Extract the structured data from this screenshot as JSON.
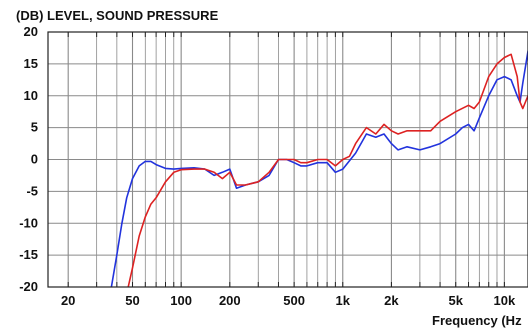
{
  "chart_data": {
    "type": "line",
    "title": "",
    "ylabel": "(DB)  LEVEL, SOUND PRESSURE",
    "xlabel": "Frequency  (Hz",
    "x_scale": "log",
    "xlim": [
      15,
      14000
    ],
    "ylim": [
      -20,
      20
    ],
    "grid": true,
    "legend": "none",
    "y_ticks": [
      "20",
      "15",
      "10",
      "5",
      "0",
      "-5",
      "-10",
      "-15",
      "-20"
    ],
    "y_tick_values": [
      20,
      15,
      10,
      5,
      0,
      -5,
      -10,
      -15,
      -20
    ],
    "x_ticks": [
      "20",
      "50",
      "100",
      "200",
      "500",
      "1k",
      "2k",
      "5k",
      "10k"
    ],
    "x_tick_values": [
      20,
      50,
      100,
      200,
      500,
      1000,
      2000,
      5000,
      10000
    ],
    "series": [
      {
        "color": "#2233dd",
        "points": [
          [
            37,
            -20
          ],
          [
            40,
            -15
          ],
          [
            43,
            -10
          ],
          [
            46,
            -6
          ],
          [
            50,
            -3
          ],
          [
            55,
            -1
          ],
          [
            60,
            -0.3
          ],
          [
            65,
            -0.3
          ],
          [
            70,
            -0.8
          ],
          [
            80,
            -1.4
          ],
          [
            90,
            -1.5
          ],
          [
            100,
            -1.4
          ],
          [
            120,
            -1.3
          ],
          [
            140,
            -1.5
          ],
          [
            160,
            -2.5
          ],
          [
            180,
            -2
          ],
          [
            200,
            -1.5
          ],
          [
            220,
            -4.5
          ],
          [
            250,
            -4
          ],
          [
            300,
            -3.5
          ],
          [
            350,
            -2.5
          ],
          [
            400,
            0
          ],
          [
            450,
            0
          ],
          [
            500,
            -0.5
          ],
          [
            550,
            -1
          ],
          [
            600,
            -1
          ],
          [
            700,
            -0.5
          ],
          [
            800,
            -0.5
          ],
          [
            900,
            -2
          ],
          [
            1000,
            -1.5
          ],
          [
            1200,
            1
          ],
          [
            1400,
            4
          ],
          [
            1600,
            3.5
          ],
          [
            1800,
            4
          ],
          [
            2000,
            2.5
          ],
          [
            2200,
            1.5
          ],
          [
            2500,
            2
          ],
          [
            3000,
            1.5
          ],
          [
            3500,
            2
          ],
          [
            4000,
            2.5
          ],
          [
            5000,
            4
          ],
          [
            5500,
            5
          ],
          [
            6000,
            5.5
          ],
          [
            6500,
            4.5
          ],
          [
            7000,
            6.5
          ],
          [
            8000,
            10
          ],
          [
            9000,
            12.5
          ],
          [
            10000,
            13
          ],
          [
            11000,
            12.5
          ],
          [
            12000,
            10
          ],
          [
            12500,
            9
          ],
          [
            13000,
            12
          ],
          [
            14000,
            17
          ]
        ]
      },
      {
        "color": "#dd2222",
        "points": [
          [
            47,
            -20
          ],
          [
            50,
            -17
          ],
          [
            55,
            -12
          ],
          [
            60,
            -9
          ],
          [
            65,
            -7
          ],
          [
            70,
            -6
          ],
          [
            80,
            -3.5
          ],
          [
            90,
            -2
          ],
          [
            100,
            -1.6
          ],
          [
            120,
            -1.5
          ],
          [
            140,
            -1.5
          ],
          [
            160,
            -2
          ],
          [
            180,
            -3
          ],
          [
            200,
            -2
          ],
          [
            220,
            -4
          ],
          [
            250,
            -4
          ],
          [
            300,
            -3.5
          ],
          [
            350,
            -2
          ],
          [
            400,
            0
          ],
          [
            450,
            0
          ],
          [
            500,
            0
          ],
          [
            550,
            -0.5
          ],
          [
            600,
            -0.5
          ],
          [
            700,
            0
          ],
          [
            800,
            0
          ],
          [
            900,
            -1
          ],
          [
            1000,
            0
          ],
          [
            1100,
            0.5
          ],
          [
            1200,
            2.5
          ],
          [
            1400,
            5
          ],
          [
            1600,
            4
          ],
          [
            1800,
            5.5
          ],
          [
            2000,
            4.5
          ],
          [
            2200,
            4
          ],
          [
            2500,
            4.5
          ],
          [
            3000,
            4.5
          ],
          [
            3500,
            4.5
          ],
          [
            4000,
            6
          ],
          [
            5000,
            7.5
          ],
          [
            6000,
            8.5
          ],
          [
            6500,
            8
          ],
          [
            7000,
            9
          ],
          [
            8000,
            13
          ],
          [
            9000,
            15
          ],
          [
            10000,
            16
          ],
          [
            11000,
            16.5
          ],
          [
            12000,
            13
          ],
          [
            12500,
            9
          ],
          [
            13000,
            8
          ],
          [
            14000,
            10
          ]
        ]
      }
    ]
  }
}
